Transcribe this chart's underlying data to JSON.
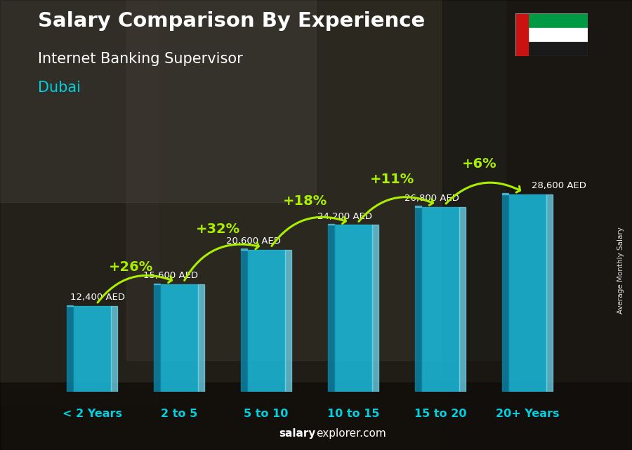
{
  "title": "Salary Comparison By Experience",
  "subtitle": "Internet Banking Supervisor",
  "city": "Dubai",
  "categories": [
    "< 2 Years",
    "2 to 5",
    "5 to 10",
    "10 to 15",
    "15 to 20",
    "20+ Years"
  ],
  "values": [
    12400,
    15600,
    20600,
    24200,
    26800,
    28600
  ],
  "value_labels": [
    "12,400 AED",
    "15,600 AED",
    "20,600 AED",
    "24,200 AED",
    "26,800 AED",
    "28,600 AED"
  ],
  "pct_changes": [
    null,
    "+26%",
    "+32%",
    "+18%",
    "+11%",
    "+6%"
  ],
  "bar_color_main": "#1ab8d8",
  "bar_color_left": "#0b7fa0",
  "bar_color_right": "#70d8f0",
  "bar_color_top": "#55ccee",
  "background_color": "#3a3528",
  "title_color": "#ffffff",
  "subtitle_color": "#ffffff",
  "city_color": "#00d0e0",
  "pct_color": "#aaee00",
  "arrow_color": "#aaee00",
  "xtick_color": "#00d0e0",
  "value_label_color": "#ffffff",
  "footer_salary_color": "#ffffff",
  "footer_explorer_color": "#ffffff",
  "side_label": "Average Monthly Salary",
  "ylim": [
    0,
    34000
  ],
  "bar_width": 0.58
}
